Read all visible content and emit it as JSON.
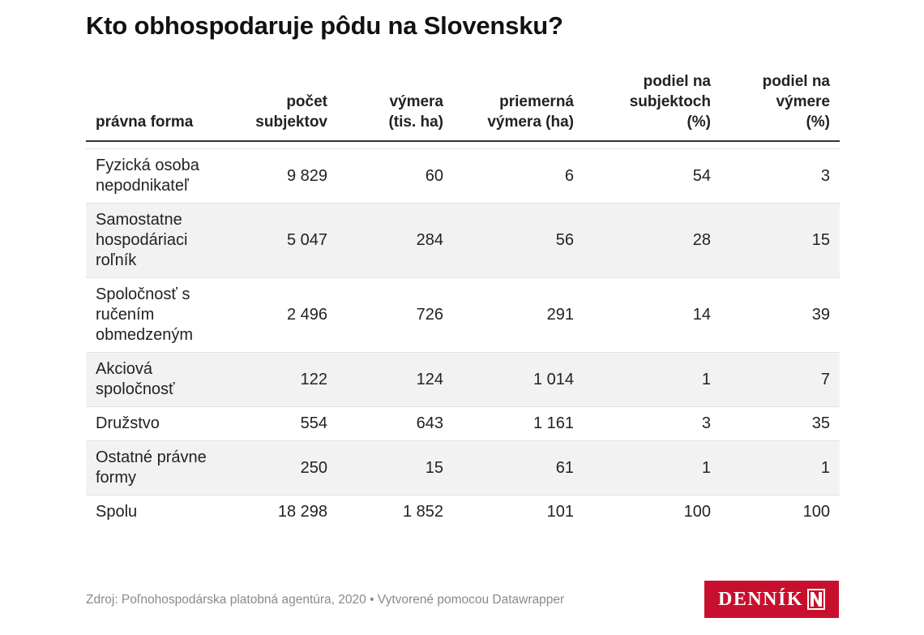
{
  "title": "Kto obhospodaruje pôdu na Slovensku?",
  "chart_data": {
    "type": "table",
    "columns": [
      "právna forma",
      "počet subjektov",
      "výmera (tis. ha)",
      "priemerná výmera (ha)",
      "podiel na subjektoch (%)",
      "podiel na výmere (%)"
    ],
    "rows": [
      [
        "Fyzická osoba nepodnikateľ",
        "9 829",
        "60",
        "6",
        "54",
        "3"
      ],
      [
        "Samostatne hospodáriaci roľník",
        "5 047",
        "284",
        "56",
        "28",
        "15"
      ],
      [
        "Spoločnosť s ručením obmedzeným",
        "2 496",
        "726",
        "291",
        "14",
        "39"
      ],
      [
        "Akciová spoločnosť",
        "122",
        "124",
        "1 014",
        "1",
        "7"
      ],
      [
        "Družstvo",
        "554",
        "643",
        "1 161",
        "3",
        "35"
      ],
      [
        "Ostatné právne formy",
        "250",
        "15",
        "61",
        "1",
        "1"
      ],
      [
        "Spolu",
        "18 298",
        "1 852",
        "101",
        "100",
        "100"
      ]
    ]
  },
  "footer": "Zdroj: Poľnohospodárska platobná agentúra, 2020 • Vytvorené pomocou Datawrapper",
  "logo": {
    "text": "DENNÍK",
    "color": "#c8102e"
  }
}
